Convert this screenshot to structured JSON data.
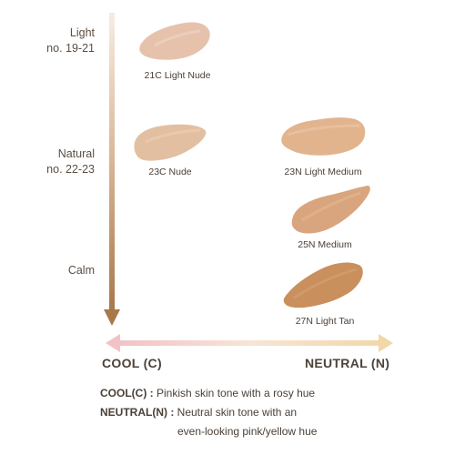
{
  "tiers": [
    {
      "line1": "Light",
      "line2": "no. 19-21"
    },
    {
      "line1": "Natural",
      "line2": "no. 22-23"
    },
    {
      "line1": "Calm",
      "line2": ""
    }
  ],
  "shades": [
    {
      "name": "21C Light Nude",
      "color": "#e6c2ad"
    },
    {
      "name": "23C Nude",
      "color": "#e3bfa1"
    },
    {
      "name": "23N Light Medium",
      "color": "#e2b48e"
    },
    {
      "name": "25N Medium",
      "color": "#d9a57e"
    },
    {
      "name": "27N Light Tan",
      "color": "#c98f5c"
    }
  ],
  "axis": {
    "left": "COOL (C)",
    "right": "NEUTRAL (N)"
  },
  "legend": {
    "cool_key": "COOL(C) :",
    "cool_text": "Pinkish skin tone with a rosy hue",
    "neutral_key": "NEUTRAL(N) :",
    "neutral_text_1": "Neutral skin tone with an",
    "neutral_text_2": "even-looking pink/yellow hue"
  },
  "colors": {
    "vertical_arrow_top": "#f6e6d8",
    "vertical_arrow_bottom": "#a8784a",
    "horizontal_arrow_left": "#f2c6c9",
    "horizontal_arrow_right": "#f2dcb0"
  }
}
